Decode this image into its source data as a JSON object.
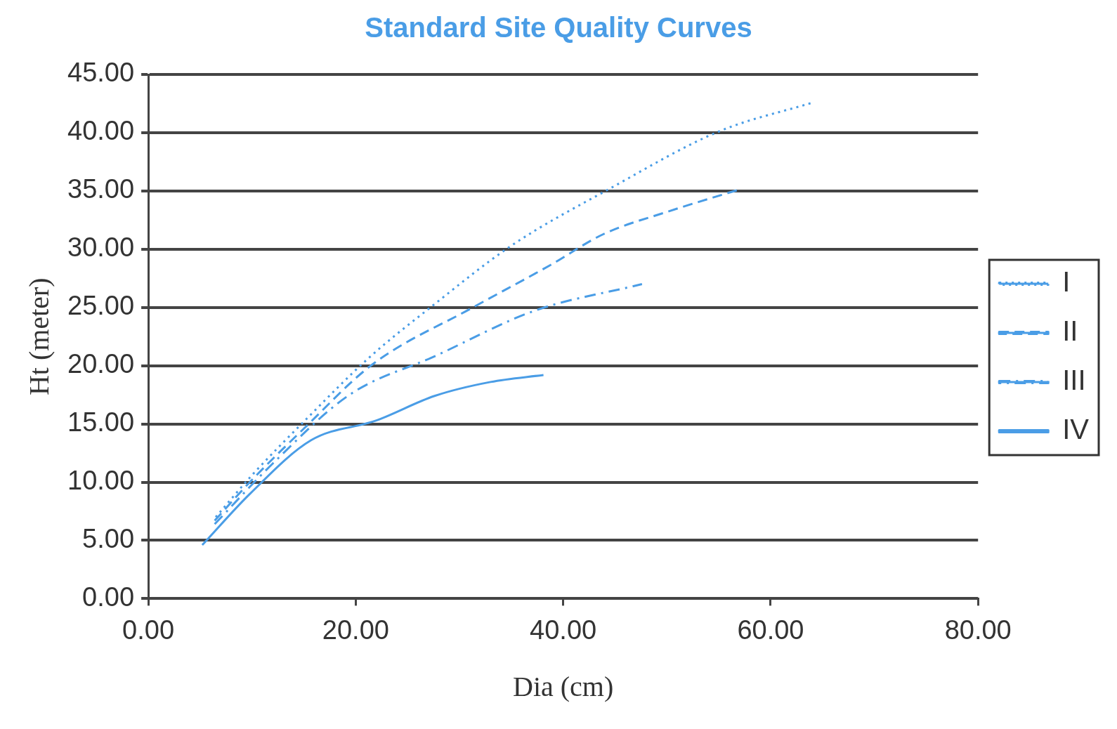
{
  "chart_data": {
    "type": "line",
    "title": "Standard Site Quality Curves",
    "xlabel": "Dia (cm)",
    "ylabel": "Ht (meter)",
    "xlim": [
      0,
      80
    ],
    "xticks": [
      {
        "value": 0,
        "label": "0.00"
      },
      {
        "value": 20,
        "label": "20.00"
      },
      {
        "value": 40,
        "label": "40.00"
      },
      {
        "value": 60,
        "label": "60.00"
      },
      {
        "value": 80,
        "label": "80.00"
      }
    ],
    "ylim": [
      0,
      45
    ],
    "yticks": [
      {
        "value": 0,
        "label": "0.00"
      },
      {
        "value": 5,
        "label": "5.00"
      },
      {
        "value": 10,
        "label": "10.00"
      },
      {
        "value": 15,
        "label": "15.00"
      },
      {
        "value": 20,
        "label": "20.00"
      },
      {
        "value": 25,
        "label": "25.00"
      },
      {
        "value": 30,
        "label": "30.00"
      },
      {
        "value": 35,
        "label": "35.00"
      },
      {
        "value": 40,
        "label": "40.00"
      },
      {
        "value": 45,
        "label": "45.00"
      }
    ],
    "grid": "y",
    "legend": "right",
    "marker": "none",
    "series": [
      {
        "name": "I",
        "color": "#4a9de6",
        "line_style": "dotted",
        "x": [
          6.5,
          10,
          15,
          21.3,
          27.2,
          35,
          44.5,
          55,
          64.1
        ],
        "values": [
          7,
          10.6,
          15.2,
          20.7,
          25,
          30.3,
          35.2,
          40.1,
          42.6
        ]
      },
      {
        "name": "II",
        "color": "#4a9de6",
        "line_style": "dashed",
        "x": [
          6.4,
          10,
          15,
          21.6,
          31.3,
          38.7,
          43.9,
          50,
          56.9
        ],
        "values": [
          6.7,
          10.2,
          14.6,
          20.1,
          25,
          28.6,
          31.3,
          33.2,
          35.1
        ]
      },
      {
        "name": "III",
        "color": "#4a9de6",
        "line_style": "dashdot",
        "x": [
          6.4,
          12,
          19.4,
          27.6,
          37.2,
          47.6
        ],
        "values": [
          6.4,
          11.6,
          17.5,
          20.8,
          24.7,
          27
        ]
      },
      {
        "name": "IV",
        "color": "#4a9de6",
        "line_style": "solid",
        "x": [
          5.2,
          9.8,
          15.7,
          22,
          27.6,
          33,
          38.1
        ],
        "values": [
          4.6,
          9,
          13.6,
          15.3,
          17.4,
          18.6,
          19.2
        ]
      }
    ]
  }
}
